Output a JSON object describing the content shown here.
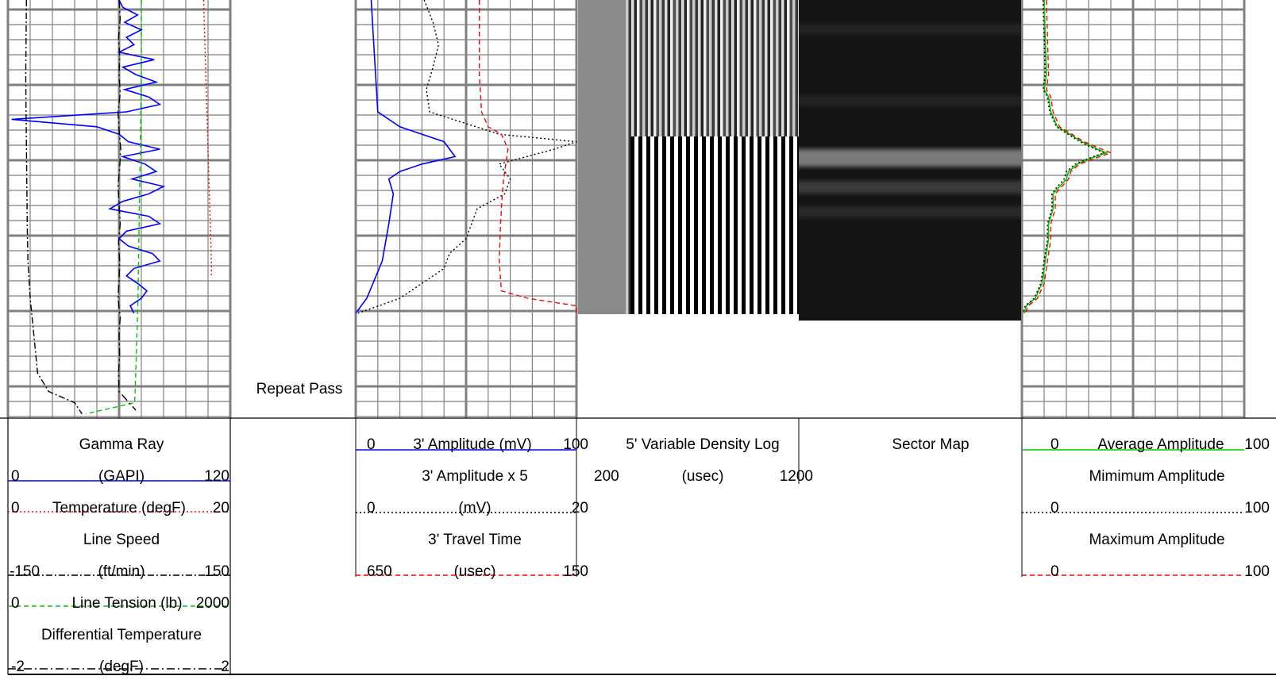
{
  "colors": {
    "grid": "#808080",
    "blue": "#0000ff",
    "red": "#ff0000",
    "green": "#00c800",
    "black": "#000000"
  },
  "annotation": "Repeat Pass",
  "chart_data": {
    "type": "line",
    "tracks": [
      {
        "name": "track-1",
        "grid": "linear",
        "curves": [
          {
            "name": "Gamma Ray",
            "unit": "GAPI",
            "left": 0,
            "right": 120,
            "color": "blue",
            "dash": "solid",
            "depths": [
              0,
              2,
              4,
              6,
              8,
              10,
              12,
              14,
              16,
              18,
              20,
              22,
              24,
              26,
              28,
              30,
              32,
              34,
              36,
              38,
              40,
              42,
              44,
              46,
              48,
              50,
              52,
              54,
              56,
              58,
              60,
              62,
              64,
              66,
              68,
              70,
              72,
              74,
              76,
              78,
              80,
              82,
              84
            ],
            "values": [
              60,
              62,
              70,
              63,
              72,
              64,
              68,
              60,
              79,
              62,
              69,
              80,
              63,
              76,
              82,
              64,
              2,
              48,
              60,
              65,
              82,
              62,
              74,
              80,
              67,
              84,
              76,
              62,
              55,
              76,
              82,
              64,
              60,
              65,
              78,
              82,
              68,
              64,
              70,
              75,
              72,
              66,
              68
            ]
          },
          {
            "name": "Temperature (degF)",
            "unit": "degF",
            "left": 0,
            "right": 20,
            "color": "red",
            "dash": "dot",
            "depths": [
              0,
              10,
              20,
              30,
              40,
              50,
              60,
              70,
              74
            ],
            "values": [
              17.6,
              17.7,
              17.8,
              17.9,
              18.0,
              18.1,
              18.2,
              18.3,
              18.3
            ]
          },
          {
            "name": "Line Speed",
            "unit": "ft/min",
            "left": -150,
            "right": 150,
            "color": "black",
            "dash": "dashdot",
            "depths": [
              0,
              20,
              40,
              60,
              70,
              80,
              90,
              100,
              105,
              108,
              111
            ],
            "values": [
              -125,
              -126,
              -125,
              -124,
              -123,
              -120,
              -115,
              -110,
              -95,
              -60,
              -50
            ]
          },
          {
            "name": "Line Tension (lb)",
            "unit": "lb",
            "left": 0,
            "right": 2000,
            "color": "green",
            "dash": "dash",
            "depths": [
              0,
              20,
              40,
              60,
              80,
              90,
              100,
              108,
              111
            ],
            "values": [
              1200,
              1200,
              1190,
              1180,
              1170,
              1160,
              1150,
              1140,
              700
            ]
          },
          {
            "name": "Differential Temperature",
            "unit": "degF",
            "left": -2,
            "right": 2,
            "color": "black",
            "dash": "dashdot2",
            "depths": [
              0,
              5,
              10,
              15,
              20,
              25,
              30,
              35,
              40,
              45,
              50,
              55,
              60,
              65,
              70,
              75,
              80,
              85,
              90,
              95,
              100,
              105,
              110
            ],
            "values": [
              0.0,
              0.02,
              -0.01,
              0.01,
              0.0,
              0.02,
              -0.02,
              0.0,
              0.03,
              0.01,
              -0.02,
              0.0,
              0.02,
              -0.01,
              0.01,
              0.0,
              -0.02,
              0.02,
              0.0,
              0.01,
              -0.01,
              0.0,
              0.3
            ]
          }
        ]
      },
      {
        "name": "track-2",
        "grid": "linear",
        "curves": [
          {
            "name": "3' Amplitude (mV)",
            "unit": "mV",
            "left": 0,
            "right": 100,
            "color": "blue",
            "dash": "solid",
            "depths": [
              0,
              10,
              20,
              30,
              34,
              38,
              42,
              44,
              46,
              48,
              52,
              60,
              70,
              80,
              84
            ],
            "values": [
              7,
              8,
              9,
              10,
              20,
              40,
              45,
              30,
              20,
              15,
              17,
              15,
              12,
              5,
              0
            ]
          },
          {
            "name": "3' Amplitude x 5",
            "unit": "mV",
            "left": 0,
            "right": 20,
            "color": "black",
            "dash": "dot",
            "depths": [
              0,
              6,
              12,
              18,
              24,
              30,
              36,
              38,
              40,
              44,
              48,
              52,
              56,
              60,
              64,
              68,
              72,
              76,
              80,
              84
            ],
            "values": [
              6.2,
              7.0,
              7.5,
              7.0,
              6.4,
              6.7,
              13.0,
              20.0,
              18.0,
              13.0,
              14.0,
              13.5,
              11.0,
              10.5,
              10.0,
              8.5,
              8.0,
              6.0,
              4.0,
              0.2
            ]
          },
          {
            "name": "3' Travel Time",
            "unit": "usec",
            "left": 650,
            "right": 150,
            "color": "red",
            "dash": "dash",
            "depths": [
              0,
              10,
              20,
              30,
              34,
              36,
              40,
              44,
              48,
              52,
              56,
              60,
              70,
              78,
              80,
              82,
              84
            ],
            "values": [
              370,
              370,
              370,
              365,
              350,
              320,
              305,
              310,
              315,
              318,
              320,
              322,
              325,
              320,
              260,
              150,
              150
            ]
          }
        ]
      },
      {
        "name": "track-3",
        "grid": "none",
        "curves": [
          {
            "name": "5' Variable Density Log",
            "unit": "usec",
            "left": 200,
            "right": 1200,
            "color": "black",
            "dash": "image"
          }
        ]
      },
      {
        "name": "track-4",
        "grid": "none",
        "curves": [
          {
            "name": "Sector Map",
            "unit": "",
            "color": "black",
            "dash": "image"
          }
        ]
      },
      {
        "name": "track-5",
        "grid": "linear",
        "curves": [
          {
            "name": "Average Amplitude",
            "unit": "",
            "left": 0,
            "right": 100,
            "color": "green",
            "dash": "solid",
            "depths": [
              0,
              10,
              20,
              24,
              26,
              30,
              34,
              38,
              40,
              41,
              42,
              44,
              46,
              48,
              50,
              52,
              56,
              60,
              64,
              68,
              72,
              76,
              80,
              82,
              84
            ],
            "values": [
              10,
              10.5,
              11,
              10,
              12,
              13,
              16,
              27,
              34,
              38,
              33,
              25,
              21,
              20,
              17,
              14,
              14,
              12,
              12,
              11,
              10,
              9,
              6,
              2,
              1
            ]
          },
          {
            "name": "Mimimum Amplitude",
            "unit": "",
            "left": 0,
            "right": 100,
            "color": "black",
            "dash": "dot",
            "depths": [
              0,
              10,
              20,
              24,
              26,
              30,
              34,
              38,
              40,
              41,
              42,
              44,
              46,
              48,
              50,
              52,
              56,
              60,
              64,
              68,
              72,
              76,
              80,
              82,
              84
            ],
            "values": [
              9.5,
              10,
              10.5,
              9.5,
              11.5,
              12.5,
              15.5,
              26,
              33,
              37,
              32,
              24,
              20,
              19,
              16,
              13.5,
              13.5,
              11.5,
              11.5,
              10.5,
              9.5,
              8.5,
              5.5,
              1.5,
              0.5
            ]
          },
          {
            "name": "Maximum Amplitude",
            "unit": "",
            "left": 0,
            "right": 100,
            "color": "red",
            "dash": "dash",
            "depths": [
              0,
              10,
              20,
              24,
              26,
              30,
              34,
              38,
              40,
              41,
              42,
              44,
              46,
              48,
              50,
              52,
              56,
              60,
              64,
              68,
              72,
              76,
              80,
              82,
              84
            ],
            "values": [
              11,
              11.5,
              12,
              11,
              13,
              14,
              17,
              28,
              36,
              40,
              35,
              26,
              22,
              21,
              18,
              15,
              15,
              13,
              13,
              12,
              11,
              10,
              7,
              3,
              1.5
            ]
          }
        ]
      }
    ]
  },
  "header": {
    "track1": {
      "gr_name": "Gamma Ray",
      "gr_left": "0",
      "gr_unit": "(GAPI)",
      "gr_right": "120",
      "temp_left": "0",
      "temp_name": "Temperature (degF)",
      "temp_right": "20",
      "ls_name": "Line Speed",
      "ls_left": "-150",
      "ls_unit": "(ft/min)",
      "ls_right": "150",
      "lt_left": "0",
      "lt_name": "Line Tension (lb)",
      "lt_right": "2000",
      "dt_name": "Differential Temperature",
      "dt_left": "-2",
      "dt_unit": "(degF)",
      "dt_right": "2"
    },
    "track2": {
      "amp_left": "0",
      "amp_name": "3' Amplitude (mV)",
      "amp_right": "100",
      "x5_name": "3' Amplitude x 5",
      "x5_left": "0",
      "x5_unit": "(mV)",
      "x5_right": "20",
      "tt_name": "3' Travel Time",
      "tt_left": "650",
      "tt_unit": "(usec)",
      "tt_right": "150"
    },
    "track3": {
      "vdl_name": "5' Variable Density Log",
      "vdl_left": "200",
      "vdl_unit": "(usec)",
      "vdl_right": "1200"
    },
    "track4": {
      "sm_name": "Sector Map"
    },
    "track5": {
      "avg_left": "0",
      "avg_name": "Average Amplitude",
      "avg_right": "100",
      "min_name": "Mimimum Amplitude",
      "min_left": "0",
      "min_right": "100",
      "max_name": "Maximum Amplitude",
      "max_left": "0",
      "max_right": "100"
    }
  }
}
